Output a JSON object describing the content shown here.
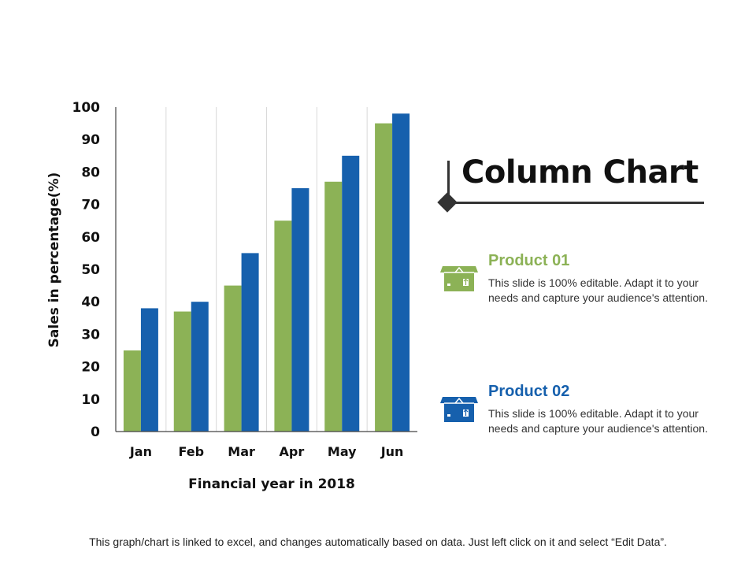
{
  "chart_data": {
    "type": "bar",
    "categories": [
      "Jan",
      "Feb",
      "Mar",
      "Apr",
      "May",
      "Jun"
    ],
    "series": [
      {
        "name": "Product 01",
        "color": "#8cb256",
        "values": [
          25,
          37,
          45,
          65,
          77,
          95
        ]
      },
      {
        "name": "Product 02",
        "color": "#1660ad",
        "values": [
          38,
          40,
          55,
          75,
          85,
          98
        ]
      }
    ],
    "ylim": [
      0,
      100
    ],
    "yticks": [
      "0",
      "10",
      "20",
      "30",
      "40",
      "50",
      "60",
      "70",
      "80",
      "90",
      "100"
    ],
    "xlabel": "Financial year in 2018",
    "ylabel": "Sales in percentage(%)",
    "grid": "vertical"
  },
  "title": "Column Chart",
  "products": [
    {
      "name": "Product 01",
      "icon": "box-icon",
      "color": "#8cb256",
      "desc": "This slide is 100% editable. Adapt it to your needs and capture your audience's attention."
    },
    {
      "name": "Product 02",
      "icon": "box-icon",
      "color": "#1660ad",
      "desc": "This slide is 100% editable. Adapt it to your needs and capture your audience's attention."
    }
  ],
  "footer": "This graph/chart is linked to excel, and changes automatically  based on data. Just left click on it and select “Edit Data”."
}
